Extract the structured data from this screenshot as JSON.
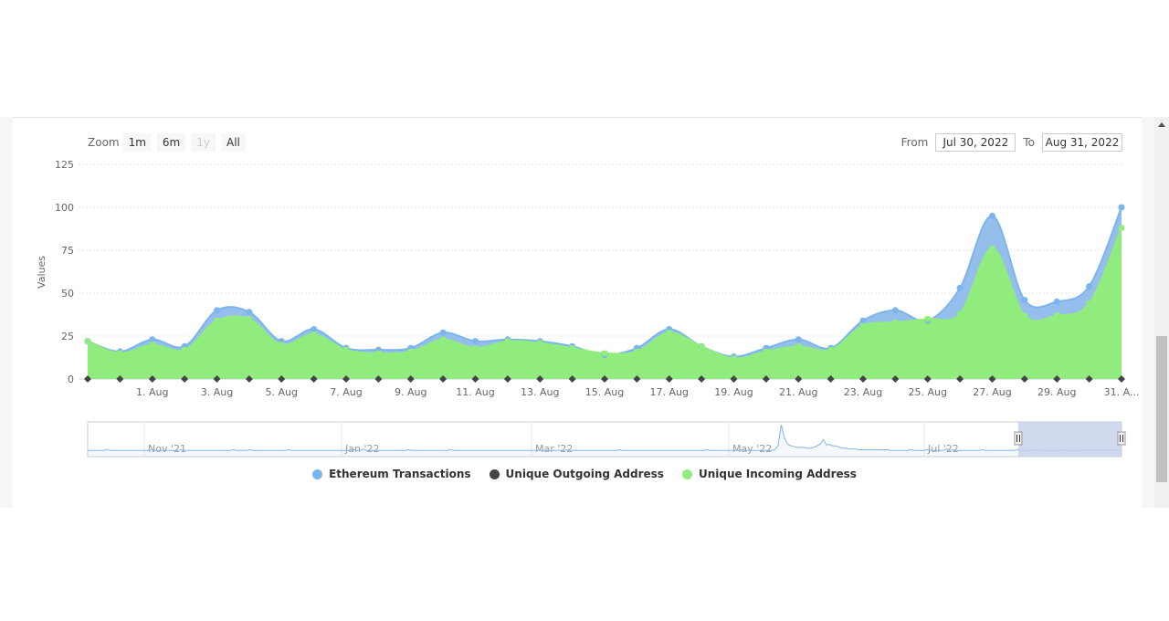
{
  "zoom": {
    "label": "Zoom",
    "buttons": [
      "1m",
      "6m",
      "1y",
      "All"
    ],
    "disabled": [
      false,
      false,
      true,
      false
    ]
  },
  "range": {
    "from_label": "From",
    "from_value": "Jul 30, 2022",
    "to_label": "To",
    "to_value": "Aug 31, 2022"
  },
  "colors": {
    "transactions": "#7cb5ec",
    "outgoing": "#434348",
    "incoming": "#90ed7d",
    "navigator": "#7cb5ec",
    "navigator_mask": "#c5cfea"
  },
  "chart_data": {
    "type": "area",
    "ylabel": "Values",
    "ylim": [
      0,
      125
    ],
    "y_ticks": [
      0,
      25,
      50,
      75,
      100,
      125
    ],
    "x": [
      "30. Jul",
      "31. Jul",
      "1. Aug",
      "2. Aug",
      "3. Aug",
      "4. Aug",
      "5. Aug",
      "6. Aug",
      "7. Aug",
      "8. Aug",
      "9. Aug",
      "10. Aug",
      "11. Aug",
      "12. Aug",
      "13. Aug",
      "14. Aug",
      "15. Aug",
      "16. Aug",
      "17. Aug",
      "18. Aug",
      "19. Aug",
      "20. Aug",
      "21. Aug",
      "22. Aug",
      "23. Aug",
      "24. Aug",
      "25. Aug",
      "26. Aug",
      "27. Aug",
      "28. Aug",
      "29. Aug",
      "30. Aug",
      "31. Aug"
    ],
    "x_tick_labels": [
      "1. Aug",
      "3. Aug",
      "5. Aug",
      "7. Aug",
      "9. Aug",
      "11. Aug",
      "13. Aug",
      "15. Aug",
      "17. Aug",
      "19. Aug",
      "21. Aug",
      "23. Aug",
      "25. Aug",
      "27. Aug",
      "29. Aug",
      "31. A..."
    ],
    "series": [
      {
        "name": "Ethereum Transactions",
        "values": [
          22,
          16,
          23,
          19,
          40,
          39,
          22,
          29,
          18,
          17,
          18,
          27,
          22,
          23,
          22,
          19,
          14,
          18,
          29,
          19,
          13,
          18,
          23,
          18,
          34,
          40,
          34,
          53,
          95,
          46,
          45,
          54,
          100
        ]
      },
      {
        "name": "Unique Outgoing Address",
        "values": [
          0,
          0,
          0,
          0,
          0,
          0,
          0,
          0,
          0,
          0,
          0,
          0,
          0,
          0,
          0,
          0,
          0,
          0,
          0,
          0,
          0,
          0,
          0,
          0,
          0,
          0,
          0,
          0,
          0,
          0,
          0,
          0,
          0
        ]
      },
      {
        "name": "Unique Incoming Address",
        "values": [
          22,
          15,
          20,
          17,
          34,
          35,
          20,
          26,
          17,
          15,
          16,
          23,
          18,
          22,
          21,
          18,
          15,
          16,
          27,
          19,
          12,
          16,
          19,
          17,
          31,
          33,
          35,
          38,
          76,
          37,
          37,
          44,
          88
        ]
      }
    ],
    "legend": [
      "Ethereum Transactions",
      "Unique Outgoing Address",
      "Unique Incoming Address"
    ],
    "legend_position": "bottom-center",
    "grid": true,
    "navigator": {
      "labels": [
        "Nov '21",
        "Jan '22",
        "Mar '22",
        "May '22",
        "Jul '22"
      ],
      "profile": [
        2,
        2,
        2,
        2,
        2,
        2,
        3,
        2,
        2,
        2,
        2,
        2,
        2,
        2,
        2,
        2,
        2,
        2,
        2,
        2,
        3,
        2,
        2,
        2,
        2,
        2,
        2,
        2,
        2,
        3,
        2,
        2,
        2,
        2,
        2,
        2,
        2,
        2,
        2,
        2,
        2,
        2,
        2,
        2,
        2,
        3,
        2,
        2,
        2,
        2,
        3,
        2,
        2,
        2,
        2,
        2,
        2,
        2,
        2,
        2,
        2,
        2,
        3,
        2,
        2,
        2,
        2,
        2,
        2,
        2,
        2,
        2,
        2,
        2,
        2,
        2,
        2,
        2,
        2,
        2,
        2,
        2,
        3,
        2,
        2,
        4,
        2,
        2,
        2,
        2,
        2,
        2,
        2,
        2,
        2,
        2,
        2,
        2,
        2,
        3,
        2,
        2,
        2,
        2,
        2,
        2,
        2,
        2,
        2,
        2,
        2,
        2,
        3,
        2,
        2,
        2,
        2,
        2,
        2,
        2,
        2,
        2,
        2,
        2,
        2,
        2,
        2,
        2,
        2,
        2,
        2,
        2,
        2,
        2,
        2,
        2,
        2,
        2,
        2,
        2,
        2,
        2,
        2,
        2,
        2,
        2,
        2,
        2,
        3,
        2,
        2,
        2,
        2,
        2,
        2,
        2,
        2,
        2,
        2,
        2,
        2,
        2,
        2,
        2,
        3,
        2,
        2,
        2,
        2,
        2,
        2,
        2,
        2,
        2,
        2,
        2,
        2,
        2,
        2,
        2,
        2,
        2,
        2,
        2,
        2,
        2,
        2,
        2,
        2,
        2,
        2,
        3,
        2,
        2,
        2,
        2,
        2,
        2,
        2,
        2,
        2,
        2,
        3,
        2,
        2,
        2,
        2,
        2,
        2,
        2,
        2,
        2,
        3,
        8,
        35,
        18,
        10,
        8,
        7,
        6,
        6,
        6,
        5,
        5,
        6,
        8,
        10,
        16,
        9,
        10,
        8,
        8,
        6,
        5,
        5,
        4,
        4,
        4,
        3,
        3,
        3,
        3,
        3,
        3,
        3,
        3,
        3,
        3,
        2,
        2,
        2,
        2,
        2,
        2,
        3,
        2,
        2,
        2,
        2,
        3,
        2,
        2,
        2,
        2,
        2,
        4,
        2,
        3,
        2,
        2,
        2,
        2,
        2,
        2,
        2,
        2,
        3,
        2,
        2,
        2,
        2,
        2,
        2,
        2,
        2,
        2,
        2,
        3,
        2,
        2,
        2,
        2,
        2,
        3,
        2,
        2,
        2,
        2,
        2,
        2,
        2,
        3,
        2,
        2,
        2,
        2,
        2,
        2,
        3,
        2,
        3,
        2,
        2,
        3,
        2,
        3,
        3,
        2,
        2,
        3
      ]
    }
  }
}
